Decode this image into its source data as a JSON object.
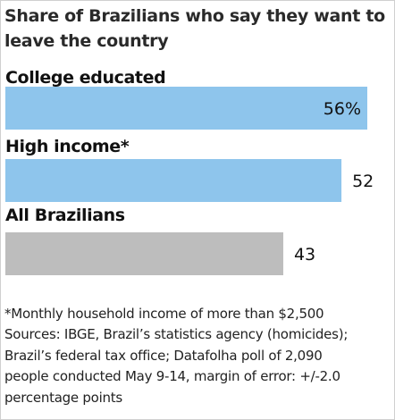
{
  "chart_data": {
    "type": "bar",
    "orientation": "horizontal",
    "title": "Share of Brazilians who say they want to leave the country",
    "categories": [
      "College educated",
      "High income*",
      "All Brazilians"
    ],
    "values": [
      56,
      52,
      43
    ],
    "value_labels": [
      "56%",
      "52",
      "43"
    ],
    "colors": [
      "#8ec5ec",
      "#8ec5ec",
      "#bdbdbd"
    ],
    "xlim": [
      0,
      60
    ],
    "grid": false,
    "legend": "none"
  },
  "notes": [
    "*Monthly household income of more than $2,500",
    "Sources: IBGE, Brazil’s statistics agency (homicides);",
    "Brazil’s federal tax office; Datafolha poll of 2,090",
    "people conducted May 9-14, margin of error: +/-2.0",
    "percentage points"
  ]
}
